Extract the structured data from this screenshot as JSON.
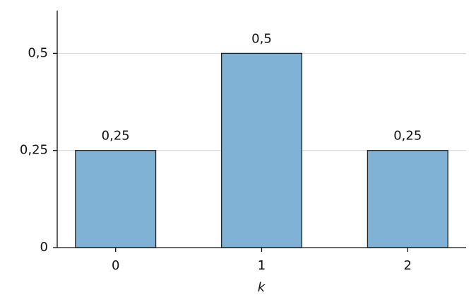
{
  "chart_data": {
    "type": "bar",
    "x": [
      0,
      1,
      2
    ],
    "values": [
      0.25,
      0.5,
      0.25
    ],
    "value_labels": [
      "0,25",
      "0,5",
      "0,25"
    ],
    "color": "#7fb2d5",
    "edgecolor": "#222222",
    "xlabel": "k",
    "xlim": [
      -0.4,
      2.4
    ],
    "xticks": [
      0,
      1,
      2
    ],
    "ylim": [
      0,
      0.61
    ],
    "yticks": [
      0,
      {
        "value": 0.25,
        "label": "0,25"
      },
      {
        "value": 0.5,
        "label": "0,5"
      }
    ],
    "grid": true
  }
}
